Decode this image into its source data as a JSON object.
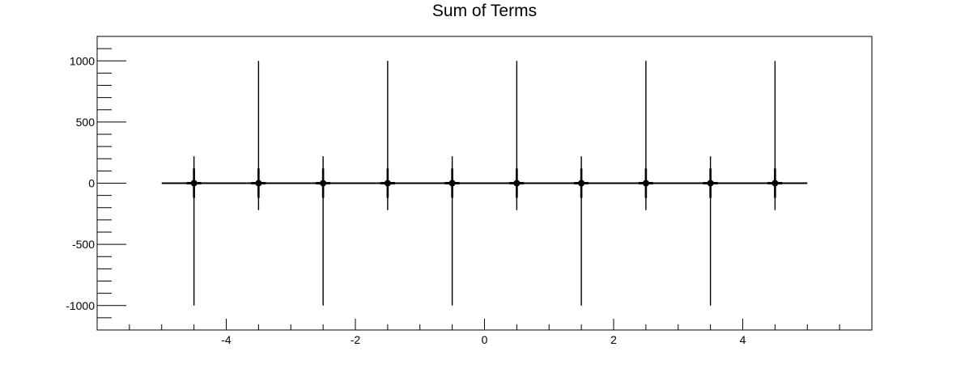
{
  "chart_data": {
    "type": "line",
    "title": "Sum of Terms",
    "xlabel": "",
    "ylabel": "",
    "xlim": [
      -6,
      6
    ],
    "ylim": [
      -1200,
      1200
    ],
    "x_ticks": [
      -4,
      -2,
      0,
      2,
      4
    ],
    "x_tick_labels": [
      "-4",
      "-2",
      "0",
      "2",
      "4"
    ],
    "y_ticks": [
      -1000,
      -500,
      0,
      500,
      1000
    ],
    "y_tick_labels": [
      "-1000",
      "-500",
      "0",
      "500",
      "1000"
    ],
    "grid": false,
    "legend": "none",
    "line_color": "#000000",
    "series": [
      {
        "domain": [
          -5,
          5
        ],
        "baseline": 0,
        "spikes": [
          {
            "x": -4.5,
            "y_min": -1000,
            "y_max": 220,
            "dot_y": 0
          },
          {
            "x": -3.5,
            "y_min": -220,
            "y_max": 1000,
            "dot_y": 0
          },
          {
            "x": -2.5,
            "y_min": -1000,
            "y_max": 220,
            "dot_y": 0
          },
          {
            "x": -1.5,
            "y_min": -220,
            "y_max": 1000,
            "dot_y": 0
          },
          {
            "x": -0.5,
            "y_min": -1000,
            "y_max": 220,
            "dot_y": 0
          },
          {
            "x": 0.5,
            "y_min": -220,
            "y_max": 1000,
            "dot_y": 0
          },
          {
            "x": 1.5,
            "y_min": -1000,
            "y_max": 220,
            "dot_y": 0
          },
          {
            "x": 2.5,
            "y_min": -220,
            "y_max": 1000,
            "dot_y": 0
          },
          {
            "x": 3.5,
            "y_min": -1000,
            "y_max": 220,
            "dot_y": 0
          },
          {
            "x": 4.5,
            "y_min": -220,
            "y_max": 1000,
            "dot_y": 0
          }
        ]
      }
    ]
  }
}
